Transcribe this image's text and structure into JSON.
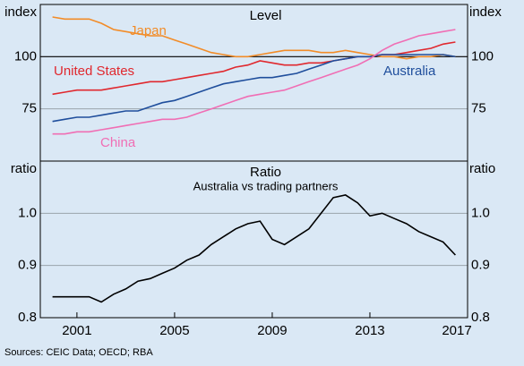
{
  "chart_data": [
    {
      "type": "line",
      "title": "Level",
      "y_label": "index",
      "x": [
        2000,
        2000.5,
        2001,
        2001.5,
        2002,
        2002.5,
        2003,
        2003.5,
        2004,
        2004.5,
        2005,
        2005.5,
        2006,
        2006.5,
        2007,
        2007.5,
        2008,
        2008.5,
        2009,
        2009.5,
        2010,
        2010.5,
        2011,
        2011.5,
        2012,
        2012.5,
        2013,
        2013.5,
        2014,
        2014.5,
        2015,
        2015.5,
        2016,
        2016.5
      ],
      "xlim": [
        1999.5,
        2017
      ],
      "ylim": [
        50,
        125
      ],
      "yticks": [
        75,
        100
      ],
      "reference_line": 100,
      "series": [
        {
          "name": "Japan",
          "color": "#f28c28",
          "values": [
            119,
            118,
            118,
            118,
            116,
            113,
            112,
            111,
            110,
            110,
            108,
            106,
            104,
            102,
            101,
            100,
            100,
            101,
            102,
            103,
            103,
            103,
            102,
            102,
            103,
            102,
            101,
            100,
            100,
            99,
            100,
            100,
            101,
            100
          ]
        },
        {
          "name": "United States",
          "color": "#e0282e",
          "values": [
            82,
            83,
            84,
            84,
            84,
            85,
            86,
            87,
            88,
            88,
            89,
            90,
            91,
            92,
            93,
            95,
            96,
            98,
            97,
            96,
            96,
            97,
            97,
            98,
            99,
            100,
            100,
            101,
            101,
            102,
            103,
            104,
            106,
            107
          ]
        },
        {
          "name": "Australia",
          "color": "#1f4e9c",
          "values": [
            69,
            70,
            71,
            71,
            72,
            73,
            74,
            74,
            76,
            78,
            79,
            81,
            83,
            85,
            87,
            88,
            89,
            90,
            90,
            91,
            92,
            94,
            96,
            98,
            99,
            100,
            100,
            101,
            101,
            101,
            101,
            101,
            101,
            100
          ]
        },
        {
          "name": "China",
          "color": "#f06eb4",
          "values": [
            63,
            63,
            64,
            64,
            65,
            66,
            67,
            68,
            69,
            70,
            70,
            71,
            73,
            75,
            77,
            79,
            81,
            82,
            83,
            84,
            86,
            88,
            90,
            92,
            94,
            96,
            99,
            103,
            106,
            108,
            110,
            111,
            112,
            113
          ]
        }
      ]
    },
    {
      "type": "line",
      "title": "Ratio",
      "subtitle": "Australia vs trading partners",
      "y_label": "ratio",
      "x": [
        2000,
        2000.5,
        2001,
        2001.5,
        2002,
        2002.5,
        2003,
        2003.5,
        2004,
        2004.5,
        2005,
        2005.5,
        2006,
        2006.5,
        2007,
        2007.5,
        2008,
        2008.5,
        2009,
        2009.5,
        2010,
        2010.5,
        2011,
        2011.5,
        2012,
        2012.5,
        2013,
        2013.5,
        2014,
        2014.5,
        2015,
        2015.5,
        2016,
        2016.5
      ],
      "xlim": [
        1999.5,
        2017
      ],
      "xticks": [
        2001,
        2005,
        2009,
        2013,
        2017
      ],
      "ylim": [
        0.8,
        1.1
      ],
      "yticks": [
        0.8,
        0.9,
        {
          "value": 1,
          "label": "1.0"
        }
      ],
      "series": [
        {
          "color": "#000000",
          "values": [
            0.84,
            0.84,
            0.84,
            0.84,
            0.83,
            0.845,
            0.855,
            0.87,
            0.875,
            0.885,
            0.895,
            0.91,
            0.92,
            0.94,
            0.955,
            0.97,
            0.98,
            0.985,
            0.95,
            0.94,
            0.955,
            0.97,
            1.0,
            1.03,
            1.035,
            1.02,
            0.995,
            1.0,
            0.99,
            0.98,
            0.965,
            0.955,
            0.945,
            0.92
          ]
        }
      ]
    }
  ],
  "source": "Sources: CEIC Data; OECD; RBA"
}
